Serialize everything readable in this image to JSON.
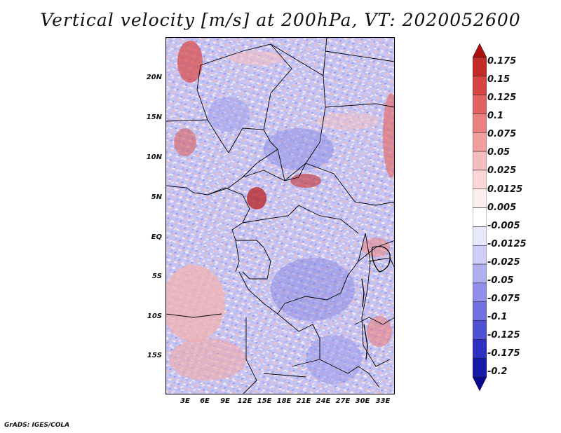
{
  "title": "Vertical velocity [m/s] at 200hPa, VT: 2020052600",
  "credit": "GrADS: IGES/COLA",
  "lat_labels": [
    "20N",
    "15N",
    "10N",
    "5N",
    "EQ",
    "5S",
    "10S",
    "15S"
  ],
  "lon_labels": [
    "3E",
    "6E",
    "9E",
    "12E",
    "15E",
    "18E",
    "21E",
    "24E",
    "27E",
    "30E",
    "33E"
  ],
  "colorbar": {
    "labels": [
      "0.175",
      "0.15",
      "0.125",
      "0.1",
      "0.075",
      "0.05",
      "0.025",
      "0.0125",
      "0.005",
      "-0.005",
      "-0.0125",
      "-0.025",
      "-0.05",
      "-0.075",
      "-0.1",
      "-0.125",
      "-0.175",
      "-0.2"
    ],
    "colors": [
      "#aa1010",
      "#c42a2a",
      "#d84444",
      "#e26262",
      "#ea8080",
      "#f09e9e",
      "#f6bcbc",
      "#fad6d6",
      "#fdeeee",
      "#ffffff",
      "#e8e8fc",
      "#cdcdf6",
      "#b0b0f0",
      "#9090ea",
      "#7070e0",
      "#5050d2",
      "#3030c0",
      "#1818a8",
      "#0a0a90"
    ]
  }
}
